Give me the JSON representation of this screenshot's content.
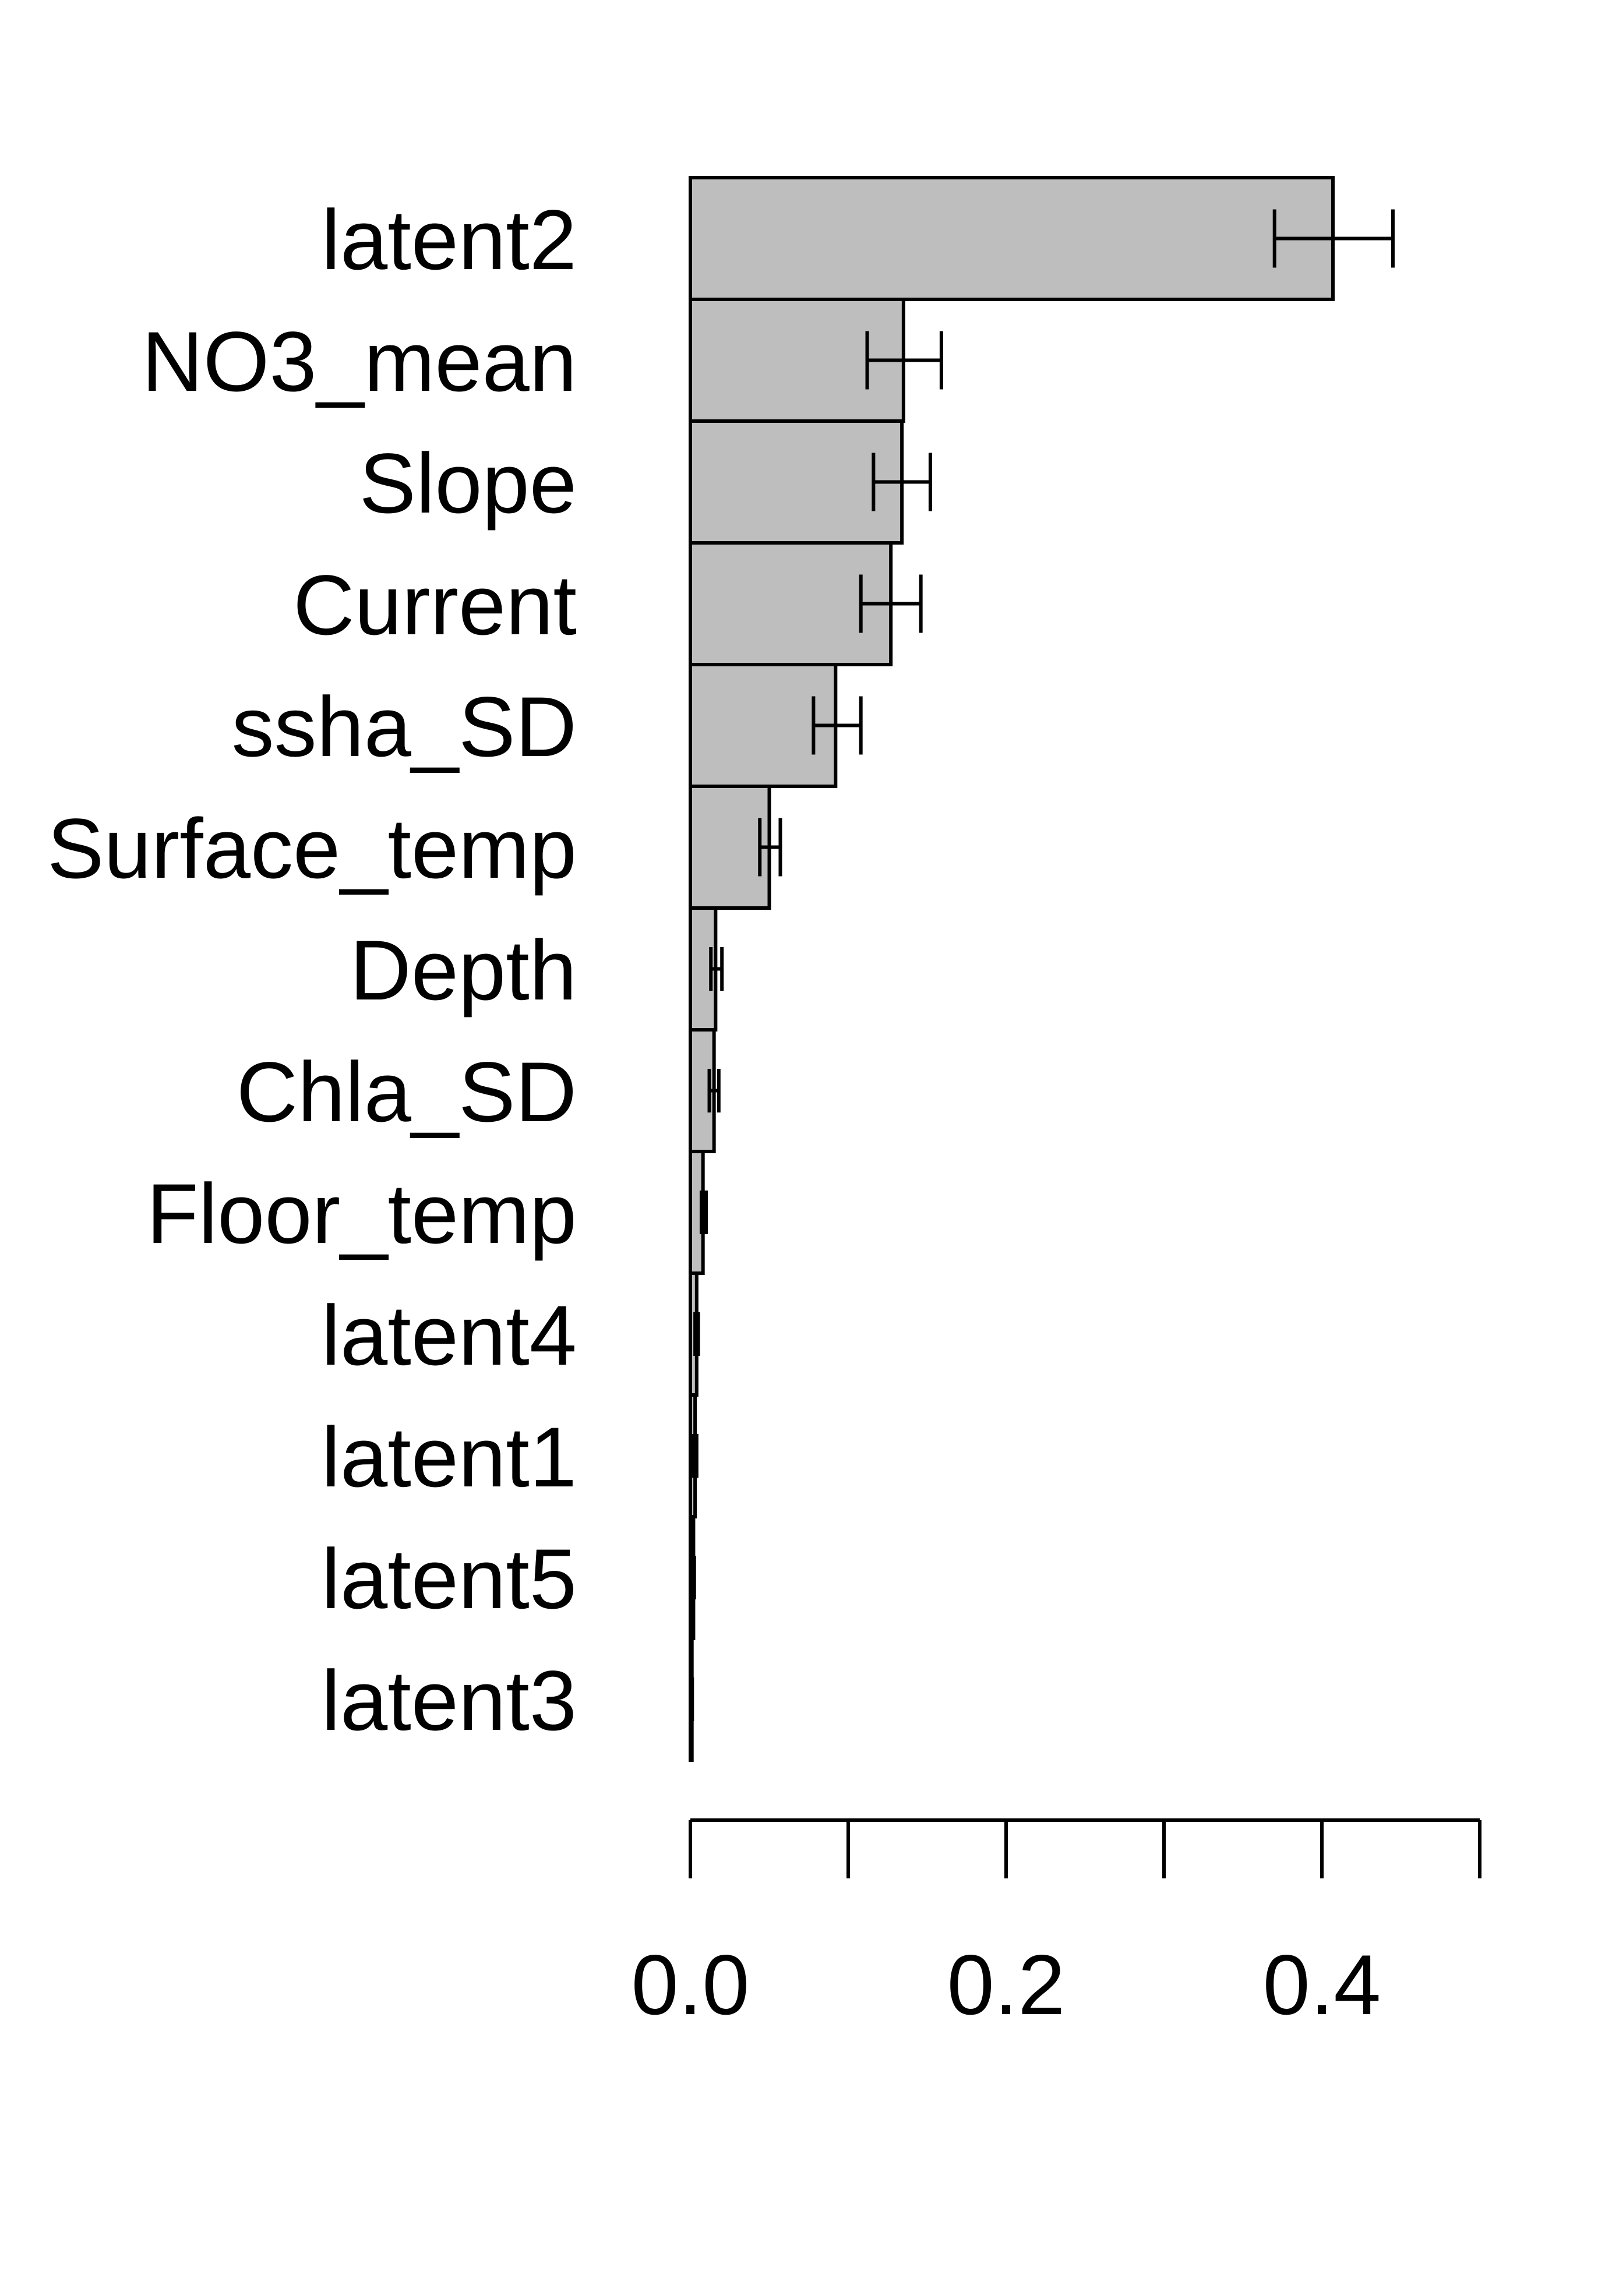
{
  "chart_data": {
    "type": "bar",
    "orientation": "horizontal",
    "categories": [
      "latent2",
      "NO3_mean",
      "Slope",
      "Current",
      "ssha_SD",
      "Surface_temp",
      "Depth",
      "Chla_SD",
      "Floor_temp",
      "latent4",
      "latent1",
      "latent5",
      "latent3"
    ],
    "values": [
      0.407,
      0.135,
      0.134,
      0.127,
      0.092,
      0.05,
      0.016,
      0.015,
      0.008,
      0.004,
      0.003,
      0.002,
      0.001
    ],
    "error_low": [
      0.37,
      0.112,
      0.116,
      0.108,
      0.078,
      0.044,
      0.013,
      0.012,
      0.007,
      0.003,
      0.002,
      0.0015,
      0.0008
    ],
    "error_high": [
      0.445,
      0.159,
      0.152,
      0.146,
      0.108,
      0.057,
      0.02,
      0.018,
      0.01,
      0.005,
      0.004,
      0.0025,
      0.0012
    ],
    "xlim": [
      0,
      0.5
    ],
    "x_ticks": [
      0.0,
      0.1,
      0.2,
      0.3,
      0.4,
      0.5
    ],
    "x_tick_labels": [
      "0.0",
      "0.2",
      "0.4"
    ],
    "x_tick_label_values": [
      0.0,
      0.2,
      0.4
    ],
    "title": "",
    "xlabel": "",
    "ylabel": "",
    "grid": false,
    "legend": "none",
    "colors": {
      "bar_fill": "#bebebe",
      "bar_stroke": "#000000",
      "error_bar": "#000000",
      "axis": "#000000"
    }
  }
}
